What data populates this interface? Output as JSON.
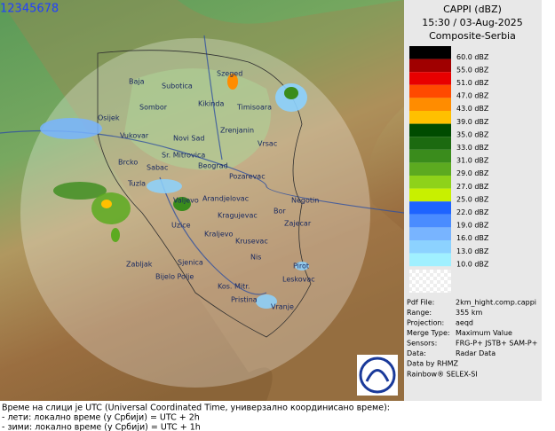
{
  "header": {
    "counter": "12345678"
  },
  "panel": {
    "title": "CAPPI (dBZ)",
    "time": "15:30 / 03-Aug-2025",
    "product": "Composite-Serbia",
    "legend": [
      {
        "label": "60.0 dBZ",
        "color": "#000000"
      },
      {
        "label": "55.0 dBZ",
        "color": "#a00000"
      },
      {
        "label": "51.0 dBZ",
        "color": "#e80000"
      },
      {
        "label": "47.0 dBZ",
        "color": "#ff4a00"
      },
      {
        "label": "43.0 dBZ",
        "color": "#ff8c00"
      },
      {
        "label": "39.0 dBZ",
        "color": "#ffc000"
      },
      {
        "label": "35.0 dBZ",
        "color": "#004b00"
      },
      {
        "label": "33.0 dBZ",
        "color": "#1c6a10"
      },
      {
        "label": "31.0 dBZ",
        "color": "#3a8c1c"
      },
      {
        "label": "29.0 dBZ",
        "color": "#5caa20"
      },
      {
        "label": "27.0 dBZ",
        "color": "#8ed21a"
      },
      {
        "label": "25.0 dBZ",
        "color": "#c8f000"
      },
      {
        "label": "22.0 dBZ",
        "color": "#1e64ff"
      },
      {
        "label": "19.0 dBZ",
        "color": "#4a8cff"
      },
      {
        "label": "16.0 dBZ",
        "color": "#78b4ff"
      },
      {
        "label": "13.0 dBZ",
        "color": "#8cd2ff"
      },
      {
        "label": "10.0 dBZ",
        "color": "#a0f0ff"
      }
    ],
    "info": [
      [
        "Pdf File:",
        "2km_hight.comp.cappi"
      ],
      [
        "Range:",
        "355 km"
      ],
      [
        "Projection:",
        "aeqd"
      ],
      [
        "Merge Type:",
        "Maximum Value"
      ],
      [
        "Sensors:",
        "FRG-P+ JSTB+ SAM-P+"
      ],
      [
        "Data:",
        "Radar Data"
      ]
    ],
    "credits": [
      "Data by RHMZ",
      "Rainbow® SELEX-SI"
    ]
  },
  "map": {
    "cities": [
      "Szeged",
      "Baja",
      "Subotica",
      "Sombor",
      "Kikinda",
      "Timisoara",
      "Osijek",
      "Vukovar",
      "Novi Sad",
      "Zrenjanin",
      "Vrsac",
      "Brcko",
      "Sr. Mitrovica",
      "Sabac",
      "Beograd",
      "Pozarevac",
      "Tuzla",
      "Valjevo",
      "Arandjelovac",
      "Bor",
      "Negotin",
      "Kragujevac",
      "Zajecar",
      "Uzice",
      "Kraljevo",
      "Krusevac",
      "Nis",
      "Zabljak",
      "Sjenica",
      "Bijelo Polje",
      "Pirot",
      "Kos. Mitr.",
      "Leskovac",
      "Pristina",
      "Vranje"
    ]
  },
  "footer": [
    "Време на слици је UTC (Universal Coordinated Time, универзално координисано време):",
    "- лети: локално време (у Србији) = UTC + 2h",
    "- зими: локално време (у Србији) = UTC + 1h"
  ]
}
